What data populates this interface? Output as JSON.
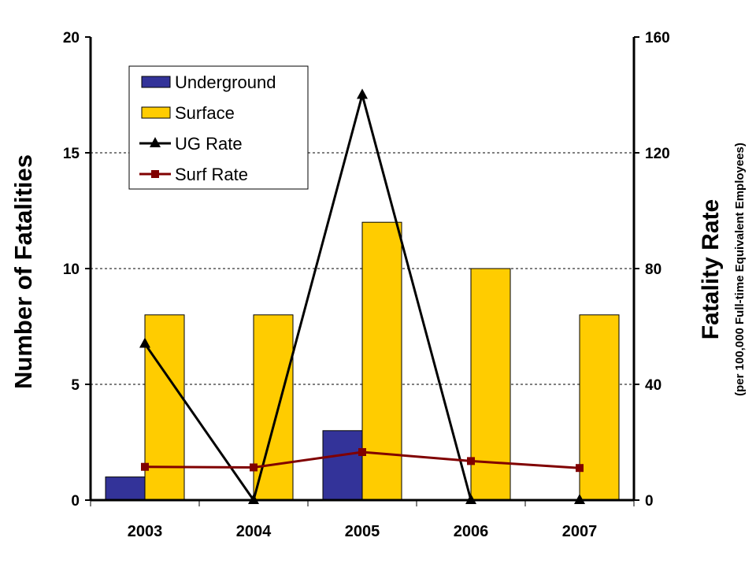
{
  "chart_data": {
    "type": "bar",
    "categories": [
      "2003",
      "2004",
      "2005",
      "2006",
      "2007"
    ],
    "series": [
      {
        "name": "Underground",
        "kind": "bar",
        "axis": "left",
        "color": "#333399",
        "values": [
          1,
          0,
          3,
          0,
          0
        ]
      },
      {
        "name": "Surface",
        "kind": "bar",
        "axis": "left",
        "color": "#FFCC00",
        "values": [
          8,
          8,
          12,
          10,
          8
        ]
      },
      {
        "name": "UG Rate",
        "kind": "line",
        "marker": "triangle",
        "axis": "right",
        "color": "#000000",
        "values": [
          54,
          0,
          140,
          0,
          0
        ]
      },
      {
        "name": "Surf Rate",
        "kind": "line",
        "marker": "square",
        "axis": "right",
        "color": "#800000",
        "values": [
          11.5,
          11.3,
          16.6,
          13.5,
          11.1
        ]
      }
    ],
    "ylabel": "Number of Fatalities",
    "y2label": "Fatality Rate",
    "y2sublabel": "(per 100,000 Full-time Equivalent Employees)",
    "ylim": [
      0,
      20
    ],
    "y2lim": [
      0,
      160
    ],
    "yticks": [
      0,
      5,
      10,
      15,
      20
    ],
    "y2ticks": [
      0,
      40,
      80,
      120,
      160
    ],
    "grid": true,
    "legend": "top-left"
  }
}
